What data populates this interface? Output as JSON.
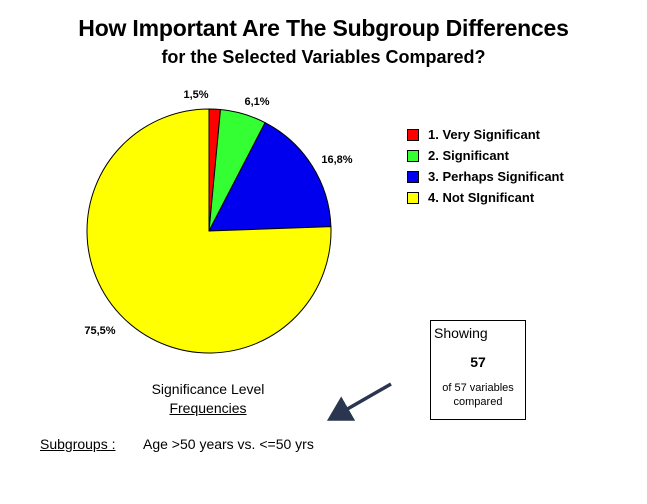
{
  "title": {
    "line1": "How Important Are The Subgroup Differences",
    "line2": "for the Selected Variables Compared?"
  },
  "chart_data": {
    "type": "pie",
    "slices": [
      {
        "label": "1. Very Significant",
        "value": 1.5,
        "display": "1,5%",
        "color": "#ff0000"
      },
      {
        "label": "2. Significant",
        "value": 6.1,
        "display": "6,1%",
        "color": "#33ff33"
      },
      {
        "label": "3. Perhaps Significant",
        "value": 16.8,
        "display": "16,8%",
        "color": "#0000ee"
      },
      {
        "label": "4. Not SIgnificant",
        "value": 75.5,
        "display": "75,5%",
        "color": "#ffff00"
      }
    ],
    "legend_position": "right",
    "start": "top, clockwise"
  },
  "showing": {
    "label": "Showing",
    "count": "57",
    "desc_line1": "of 57 variables",
    "desc_line2": "compared"
  },
  "significance": {
    "line1": "Significance Level",
    "line2": "Frequencies"
  },
  "subgroups": {
    "label": "Subgroups :",
    "value": "Age >50 years vs. <=50 yrs"
  }
}
